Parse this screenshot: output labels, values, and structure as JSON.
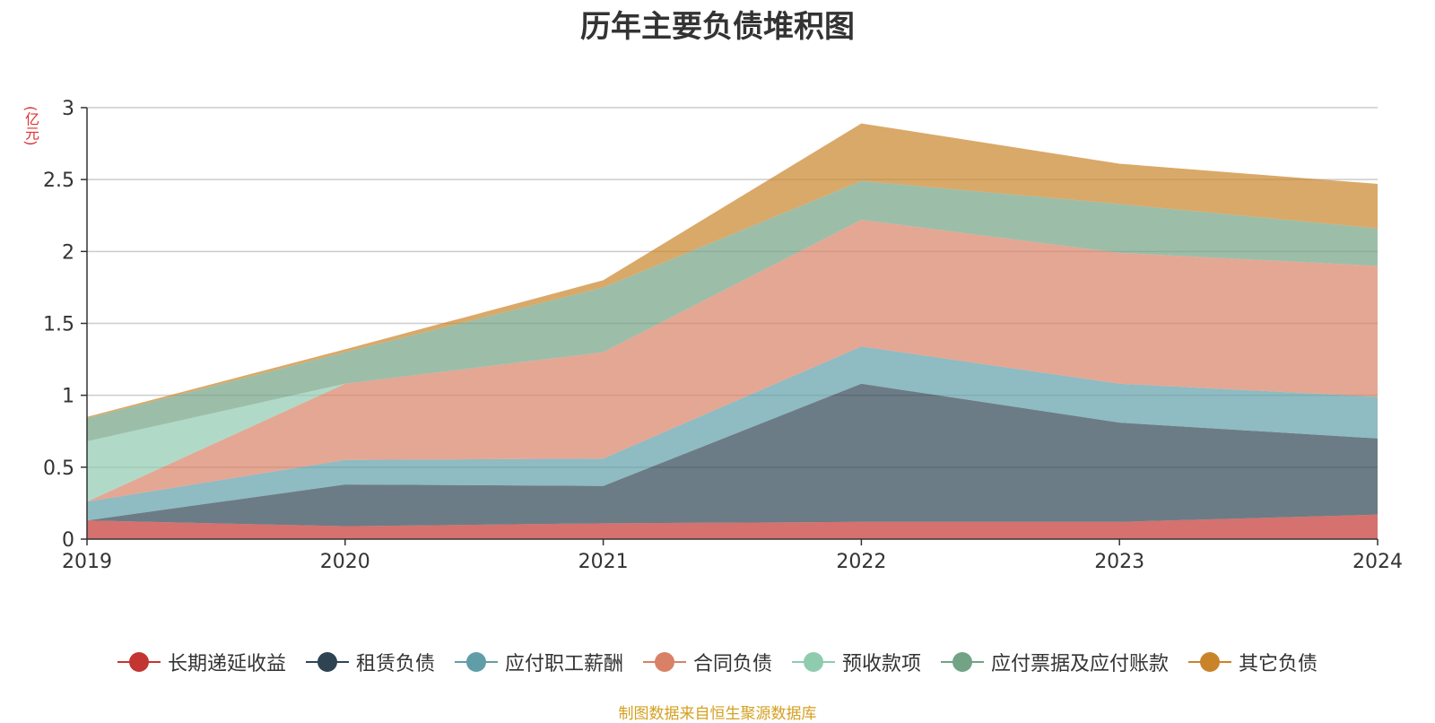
{
  "colors": {
    "series": [
      "#c33531",
      "#2e4453",
      "#5f9ea8",
      "#d98166",
      "#8fcbaf",
      "#72a384",
      "#c9842a"
    ],
    "grid": "#cccccc",
    "axis": "#333333",
    "title": "#333333",
    "unit": "#e03030",
    "source": "#d4a020"
  },
  "chart_data": {
    "type": "area",
    "stacked": true,
    "title": "历年主要负债堆积图",
    "unit_label": "(亿元)",
    "x": [
      "2019",
      "2020",
      "2021",
      "2022",
      "2023",
      "2024"
    ],
    "ylim": [
      0,
      3
    ],
    "yticks": [
      0,
      0.5,
      1,
      1.5,
      2,
      2.5,
      3
    ],
    "ytick_labels": [
      "0",
      "0.5",
      "1",
      "1.5",
      "2",
      "2.5",
      "3"
    ],
    "grid": true,
    "legend_position": "bottom",
    "series": [
      {
        "name": "长期递延收益",
        "values": [
          0.13,
          0.09,
          0.11,
          0.12,
          0.12,
          0.17
        ]
      },
      {
        "name": "租赁负债",
        "values": [
          0.0,
          0.29,
          0.26,
          0.96,
          0.69,
          0.53
        ]
      },
      {
        "name": "应付职工薪酬",
        "values": [
          0.13,
          0.17,
          0.19,
          0.26,
          0.27,
          0.29
        ]
      },
      {
        "name": "合同负债",
        "values": [
          0.0,
          0.53,
          0.74,
          0.88,
          0.91,
          0.91
        ]
      },
      {
        "name": "预收款项",
        "values": [
          0.42,
          0.0,
          0.0,
          0.0,
          0.0,
          0.0
        ]
      },
      {
        "name": "应付票据及应付账款",
        "values": [
          0.16,
          0.22,
          0.45,
          0.27,
          0.34,
          0.26
        ]
      },
      {
        "name": "其它负债",
        "values": [
          0.01,
          0.02,
          0.05,
          0.4,
          0.28,
          0.31
        ]
      }
    ],
    "source": "制图数据来自恒生聚源数据库"
  }
}
